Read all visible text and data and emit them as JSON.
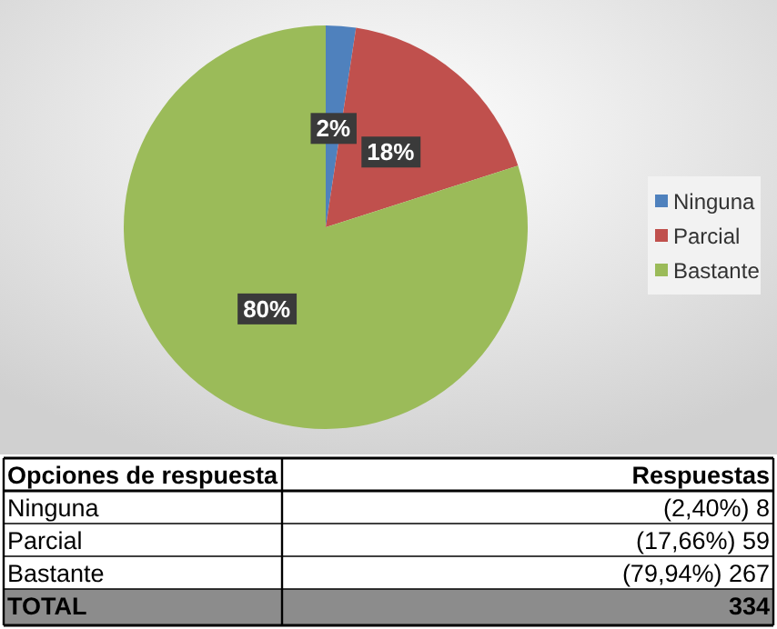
{
  "chart_data": {
    "type": "pie",
    "categories": [
      "Ninguna",
      "Parcial",
      "Bastante"
    ],
    "values": [
      2.4,
      17.66,
      79.94
    ],
    "colors": [
      "#4f81bd",
      "#c0504d",
      "#9bbb59"
    ],
    "value_labels": [
      "2%",
      "18%",
      "80%"
    ],
    "legend": "right",
    "annotations": [
      "Opciones de respuesta",
      "Respuestas",
      "(2,40%) 8",
      "(17,66%) 59",
      "(79,94%) 267",
      "TOTAL",
      "334"
    ]
  }
}
